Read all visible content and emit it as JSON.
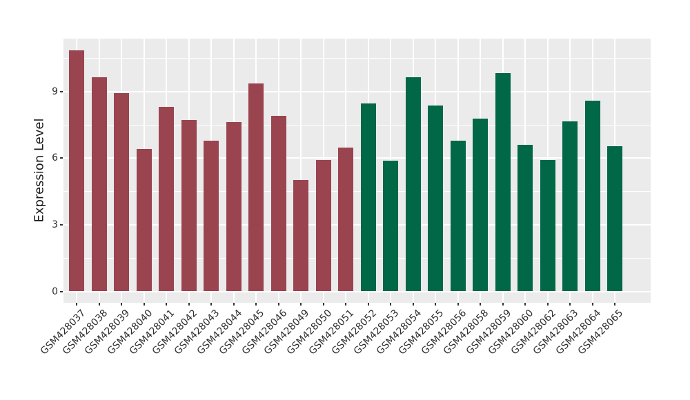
{
  "chart_data": {
    "type": "bar",
    "title": "",
    "xlabel": "",
    "ylabel": "Expression Level",
    "categories": [
      "GSM428037",
      "GSM428038",
      "GSM428039",
      "GSM428040",
      "GSM428041",
      "GSM428042",
      "GSM428043",
      "GSM428044",
      "GSM428045",
      "GSM428046",
      "GSM428049",
      "GSM428050",
      "GSM428051",
      "GSM428052",
      "GSM428053",
      "GSM428054",
      "GSM428055",
      "GSM428056",
      "GSM428058",
      "GSM428059",
      "GSM428060",
      "GSM428062",
      "GSM428063",
      "GSM428064",
      "GSM428065"
    ],
    "values": [
      10.86,
      9.66,
      8.95,
      6.42,
      8.32,
      7.72,
      6.79,
      7.64,
      9.37,
      7.9,
      5.02,
      5.93,
      6.48,
      8.46,
      5.9,
      9.65,
      8.38,
      6.78,
      7.78,
      9.83,
      6.61,
      5.93,
      7.66,
      8.6,
      6.55
    ],
    "bar_colors": [
      "#9A4450",
      "#9A4450",
      "#9A4450",
      "#9A4450",
      "#9A4450",
      "#9A4450",
      "#9A4450",
      "#9A4450",
      "#9A4450",
      "#9A4450",
      "#9A4450",
      "#9A4450",
      "#9A4450",
      "#006747",
      "#006747",
      "#006747",
      "#006747",
      "#006747",
      "#006747",
      "#006747",
      "#006747",
      "#006747",
      "#006747",
      "#006747",
      "#006747"
    ],
    "group_colors": {
      "first_13_bars": "#9A4450",
      "last_12_bars": "#006747"
    },
    "yticks": [
      0,
      3,
      6,
      9
    ],
    "yticks_minor": [
      1.5,
      4.5,
      7.5,
      10.5
    ],
    "ylim": [
      0,
      11.4
    ],
    "x_tick_rotation": 45,
    "grid": true,
    "legend_position": "none",
    "panel_background": "#EBEBEB",
    "gridline_color": "#FFFFFF",
    "figure_background": "#FFFFFF"
  }
}
